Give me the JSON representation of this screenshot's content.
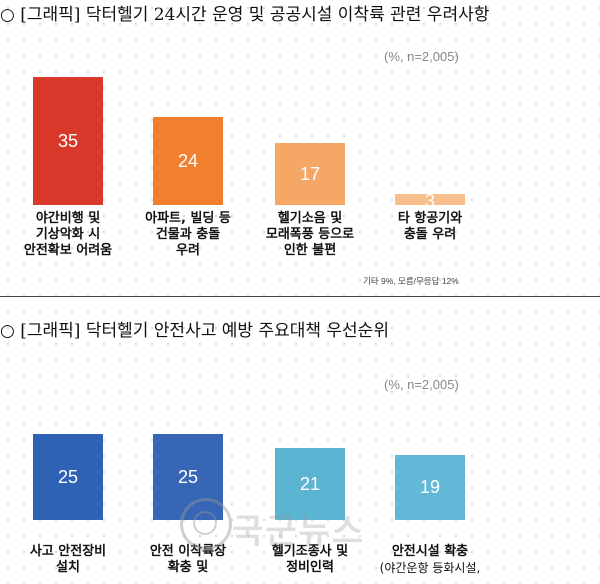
{
  "chart_data": [
    {
      "type": "bar",
      "title": "○ [그래픽] 닥터헬기 24시간 운영 및 공공시설 이착륙 관련 우려사항",
      "note": "(%, n=2,005)",
      "categories": [
        [
          "야간비행 및",
          "기상악화 시",
          "안전확보 어려움"
        ],
        [
          "아파트, 빌딩 등",
          "건물과 충돌",
          "우려"
        ],
        [
          "헬기소음 및",
          "모래폭풍 등으로",
          "인한 불편"
        ],
        [
          "타 항공기와",
          "충돌 우려"
        ]
      ],
      "values": [
        35,
        24,
        17,
        3
      ],
      "colors": [
        "#d8392a",
        "#f07f2e",
        "#f5a766",
        "#f8be8c"
      ],
      "footnote": "기타 9%, 모름/무응답 12%",
      "ylim": [
        0,
        35
      ]
    },
    {
      "type": "bar",
      "title": "○ [그래픽] 닥터헬기 안전사고 예방 주요대책 우선순위",
      "note": "(%, n=2,005)",
      "categories": [
        [
          "사고 안전장비",
          "설치"
        ],
        [
          "안전 이착륙장",
          "확충 및"
        ],
        [
          "헬기조종사 및",
          "정비인력"
        ],
        [
          "안전시설 확충",
          "(야간운항 등화시설,"
        ]
      ],
      "values": [
        25,
        25,
        21,
        19
      ],
      "colors": [
        "#2e62b4",
        "#3766b6",
        "#5ab4d2",
        "#62b8d6"
      ],
      "ylim": [
        0,
        25
      ]
    }
  ],
  "watermark": {
    "text": "국군뉴스",
    "logo_icon": "globe-logo-icon"
  }
}
